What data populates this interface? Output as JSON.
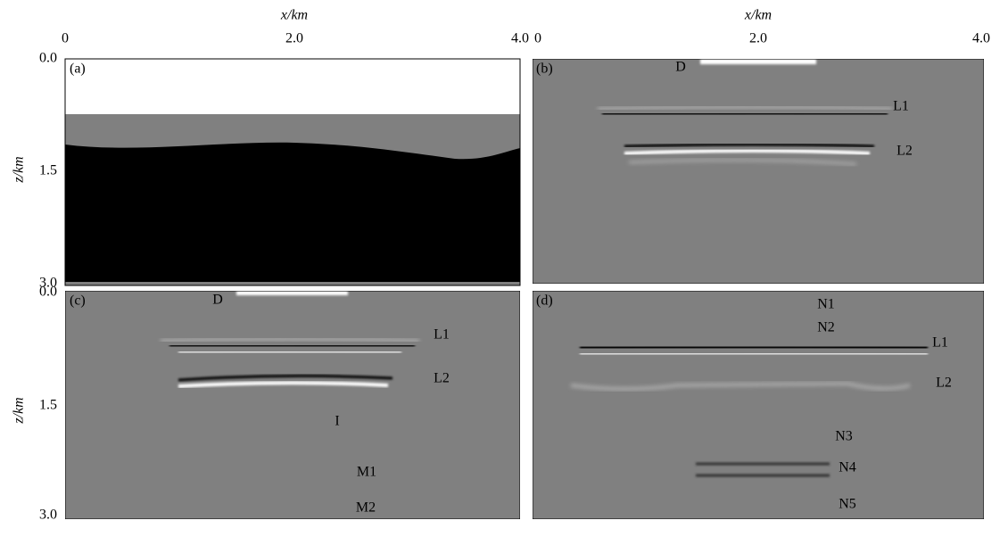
{
  "figure": {
    "x_axis": {
      "title": "x/km",
      "ticks": [
        "0",
        "2.0",
        "4.0"
      ]
    },
    "z_axis": {
      "title": "z/km",
      "ticks": [
        "0.0",
        "1.5",
        "3.0"
      ]
    },
    "panels": [
      {
        "label": "(a)"
      },
      {
        "label": "(b)",
        "annotations": [
          "D",
          "L1",
          "L2"
        ]
      },
      {
        "label": "(c)",
        "annotations": [
          "D",
          "L1",
          "L2",
          "I",
          "M1",
          "M2"
        ]
      },
      {
        "label": "(d)",
        "annotations": [
          "N1",
          "N2",
          "L1",
          "L2",
          "N3",
          "N4",
          "N5"
        ]
      }
    ]
  }
}
